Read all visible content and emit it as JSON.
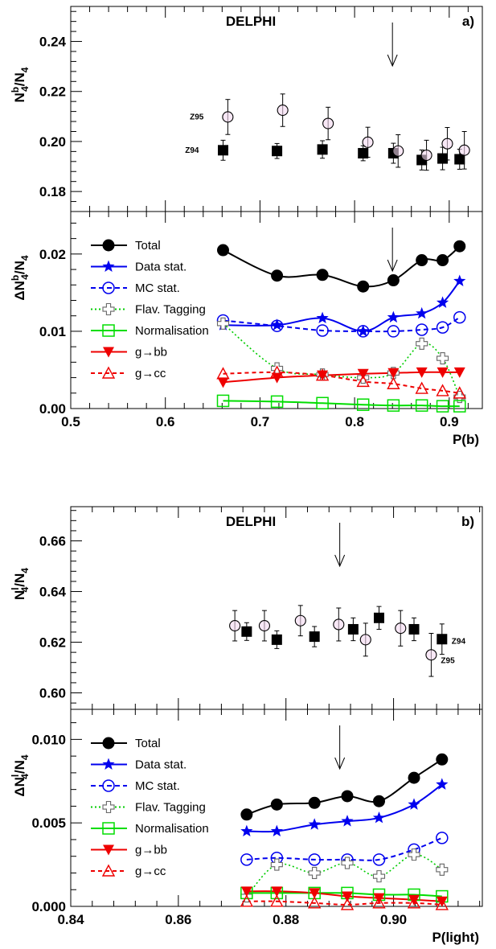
{
  "chart_data": [
    {
      "panel": "a",
      "type": "scatter",
      "title": "DELPHI",
      "panel_label": "a)",
      "ylabel_main": "N",
      "ylabel_sup": "b",
      "ylabel_sub": "4",
      "ylabel_tail": "/N",
      "ylabel_tail_sub": "4",
      "ylim": [
        0.172,
        0.254
      ],
      "yticks": [
        "0.18",
        "0.20",
        "0.22",
        "0.24"
      ],
      "yticks_values": [
        0.18,
        0.2,
        0.22,
        0.24
      ],
      "arrow_x": 0.84,
      "series": [
        {
          "name": "Z94",
          "marker": "filled-square",
          "x": [
            0.661,
            0.718,
            0.766,
            0.809,
            0.841,
            0.871,
            0.893,
            0.911
          ],
          "y": [
            0.1965,
            0.1962,
            0.1968,
            0.1953,
            0.1953,
            0.1926,
            0.1932,
            0.1929
          ],
          "err": [
            0.004,
            0.003,
            0.0035,
            0.003,
            0.004,
            0.004,
            0.0045,
            0.004
          ]
        },
        {
          "name": "Z95",
          "marker": "open-circle",
          "x": [
            0.666,
            0.724,
            0.772,
            0.814,
            0.846,
            0.876,
            0.898,
            0.916
          ],
          "y": [
            0.2098,
            0.2125,
            0.2072,
            0.1997,
            0.1962,
            0.1945,
            0.1991,
            0.1965
          ],
          "err": [
            0.007,
            0.0065,
            0.0065,
            0.006,
            0.0065,
            0.006,
            0.0065,
            0.0075
          ]
        }
      ]
    },
    {
      "panel": "a",
      "type": "line",
      "ylabel_main": "ΔN",
      "ylabel_sup": "b",
      "ylabel_sub": "4",
      "ylabel_tail": "/N",
      "ylabel_tail_sub": "4",
      "xlabel": "P(b)",
      "xlim": [
        0.5,
        0.935
      ],
      "xticks": [
        "0.5",
        "0.6",
        "0.7",
        "0.8",
        "0.9"
      ],
      "xticks_values": [
        0.5,
        0.6,
        0.7,
        0.8,
        0.9
      ],
      "ylim": [
        0,
        0.0255
      ],
      "yticks": [
        "0.00",
        "0.01",
        "0.02"
      ],
      "yticks_values": [
        0,
        0.01,
        0.02
      ],
      "arrow_x": 0.84,
      "x": [
        0.661,
        0.718,
        0.766,
        0.809,
        0.841,
        0.871,
        0.893,
        0.911
      ],
      "series": [
        {
          "name": "Total",
          "color": "#000000",
          "marker": "filled-circle",
          "dash": "",
          "values": [
            0.0205,
            0.0172,
            0.0173,
            0.0158,
            0.0166,
            0.0192,
            0.0192,
            0.021
          ]
        },
        {
          "name": "Data stat.",
          "color": "#0000ee",
          "marker": "filled-star",
          "dash": "",
          "values": [
            0.0108,
            0.0108,
            0.0117,
            0.01,
            0.0118,
            0.0123,
            0.0137,
            0.0165
          ]
        },
        {
          "name": "MC stat.",
          "color": "#0000ee",
          "marker": "open-circle",
          "dash": "6,4",
          "values": [
            0.0114,
            0.0107,
            0.0101,
            0.01,
            0.01,
            0.0102,
            0.0105,
            0.0118
          ]
        },
        {
          "name": "Flav. Tagging",
          "color": "#00cc00",
          "marker": "open-cross",
          "dash": "2,3",
          "values": [
            0.011,
            0.0052,
            0.0044,
            0.004,
            0.0046,
            0.0084,
            0.0065,
            0.0015
          ]
        },
        {
          "name": "Normalisation",
          "color": "#00dd00",
          "marker": "open-square",
          "dash": "",
          "values": [
            0.001,
            0.0009,
            0.0007,
            0.0005,
            0.0004,
            0.0004,
            0.0003,
            0.0003
          ]
        },
        {
          "name": "g→bb",
          "color": "#ee0000",
          "marker": "filled-triangle-down",
          "dash": "",
          "values": [
            0.0034,
            0.004,
            0.0043,
            0.0045,
            0.0046,
            0.0047,
            0.0047,
            0.0047
          ]
        },
        {
          "name": "g→cc",
          "color": "#ee0000",
          "marker": "open-triangle-up",
          "dash": "5,4",
          "values": [
            0.0045,
            0.0047,
            0.0043,
            0.0035,
            0.0032,
            0.0026,
            0.0023,
            0.002
          ]
        }
      ]
    },
    {
      "panel": "b",
      "type": "scatter",
      "title": "DELPHI",
      "panel_label": "b)",
      "ylabel_main": "N",
      "ylabel_sup": "l",
      "ylabel_sub": "4",
      "ylabel_tail": "/N",
      "ylabel_tail_sub": "4",
      "ylim": [
        0.5935,
        0.6735
      ],
      "yticks": [
        "0.60",
        "0.62",
        "0.64",
        "0.66"
      ],
      "yticks_values": [
        0.6,
        0.62,
        0.64,
        0.66
      ],
      "arrow_x": 0.89,
      "series": [
        {
          "name": "Z94",
          "marker": "filled-square",
          "x": [
            0.8727,
            0.8783,
            0.8853,
            0.8925,
            0.8973,
            0.9038,
            0.909
          ],
          "y": [
            0.6242,
            0.621,
            0.6222,
            0.6251,
            0.6296,
            0.6251,
            0.6212
          ],
          "err": [
            0.0035,
            0.0035,
            0.004,
            0.0045,
            0.0045,
            0.0045,
            0.006
          ]
        },
        {
          "name": "Z95",
          "marker": "open-circle",
          "x": [
            0.8705,
            0.876,
            0.8827,
            0.8898,
            0.8948,
            0.9013,
            0.907
          ],
          "y": [
            0.6265,
            0.6265,
            0.6285,
            0.627,
            0.621,
            0.6255,
            0.615
          ],
          "err": [
            0.006,
            0.006,
            0.006,
            0.0065,
            0.0065,
            0.007,
            0.0085
          ]
        }
      ]
    },
    {
      "panel": "b",
      "type": "line",
      "ylabel_main": "ΔN",
      "ylabel_sup": "l",
      "ylabel_sub": "4",
      "ylabel_tail": "/N",
      "ylabel_tail_sub": "4",
      "xlabel": "P(light)",
      "xlim": [
        0.84,
        0.9165
      ],
      "xticks": [
        "0.84",
        "0.86",
        "0.88",
        "0.90"
      ],
      "xticks_values": [
        0.84,
        0.86,
        0.88,
        0.9
      ],
      "ylim": [
        0,
        0.0118
      ],
      "yticks": [
        "0.000",
        "0.005",
        "0.010"
      ],
      "yticks_values": [
        0,
        0.005,
        0.01
      ],
      "arrow_x": 0.89,
      "x": [
        0.8727,
        0.8783,
        0.8853,
        0.8914,
        0.8973,
        0.9038,
        0.909
      ],
      "series": [
        {
          "name": "Total",
          "color": "#000000",
          "marker": "filled-circle",
          "dash": "",
          "values": [
            0.0055,
            0.0061,
            0.0062,
            0.0066,
            0.0063,
            0.0077,
            0.0088
          ]
        },
        {
          "name": "Data stat.",
          "color": "#0000ee",
          "marker": "filled-star",
          "dash": "",
          "values": [
            0.0045,
            0.0045,
            0.0049,
            0.0051,
            0.0053,
            0.0061,
            0.0073
          ]
        },
        {
          "name": "MC stat.",
          "color": "#0000ee",
          "marker": "open-circle",
          "dash": "6,4",
          "values": [
            0.0028,
            0.0029,
            0.0028,
            0.0028,
            0.0028,
            0.0034,
            0.0041
          ]
        },
        {
          "name": "Flav. Tagging",
          "color": "#00cc00",
          "marker": "open-cross",
          "dash": "2,3",
          "values": [
            0.0006,
            0.0025,
            0.002,
            0.0026,
            0.0018,
            0.0031,
            0.0022
          ]
        },
        {
          "name": "Normalisation",
          "color": "#00dd00",
          "marker": "open-square",
          "dash": "",
          "values": [
            0.0008,
            0.0008,
            0.0008,
            0.0008,
            0.0007,
            0.0007,
            0.0006
          ]
        },
        {
          "name": "g→bb",
          "color": "#ee0000",
          "marker": "filled-triangle-down",
          "dash": "",
          "values": [
            0.0009,
            0.0009,
            0.0008,
            0.0006,
            0.0005,
            0.0004,
            0.0003
          ]
        },
        {
          "name": "g→cc",
          "color": "#ee0000",
          "marker": "open-triangle-up",
          "dash": "5,4",
          "values": [
            0.0003,
            0.0003,
            0.0002,
            0.0001,
            0.0002,
            0.0002,
            0.0001
          ]
        }
      ]
    }
  ]
}
